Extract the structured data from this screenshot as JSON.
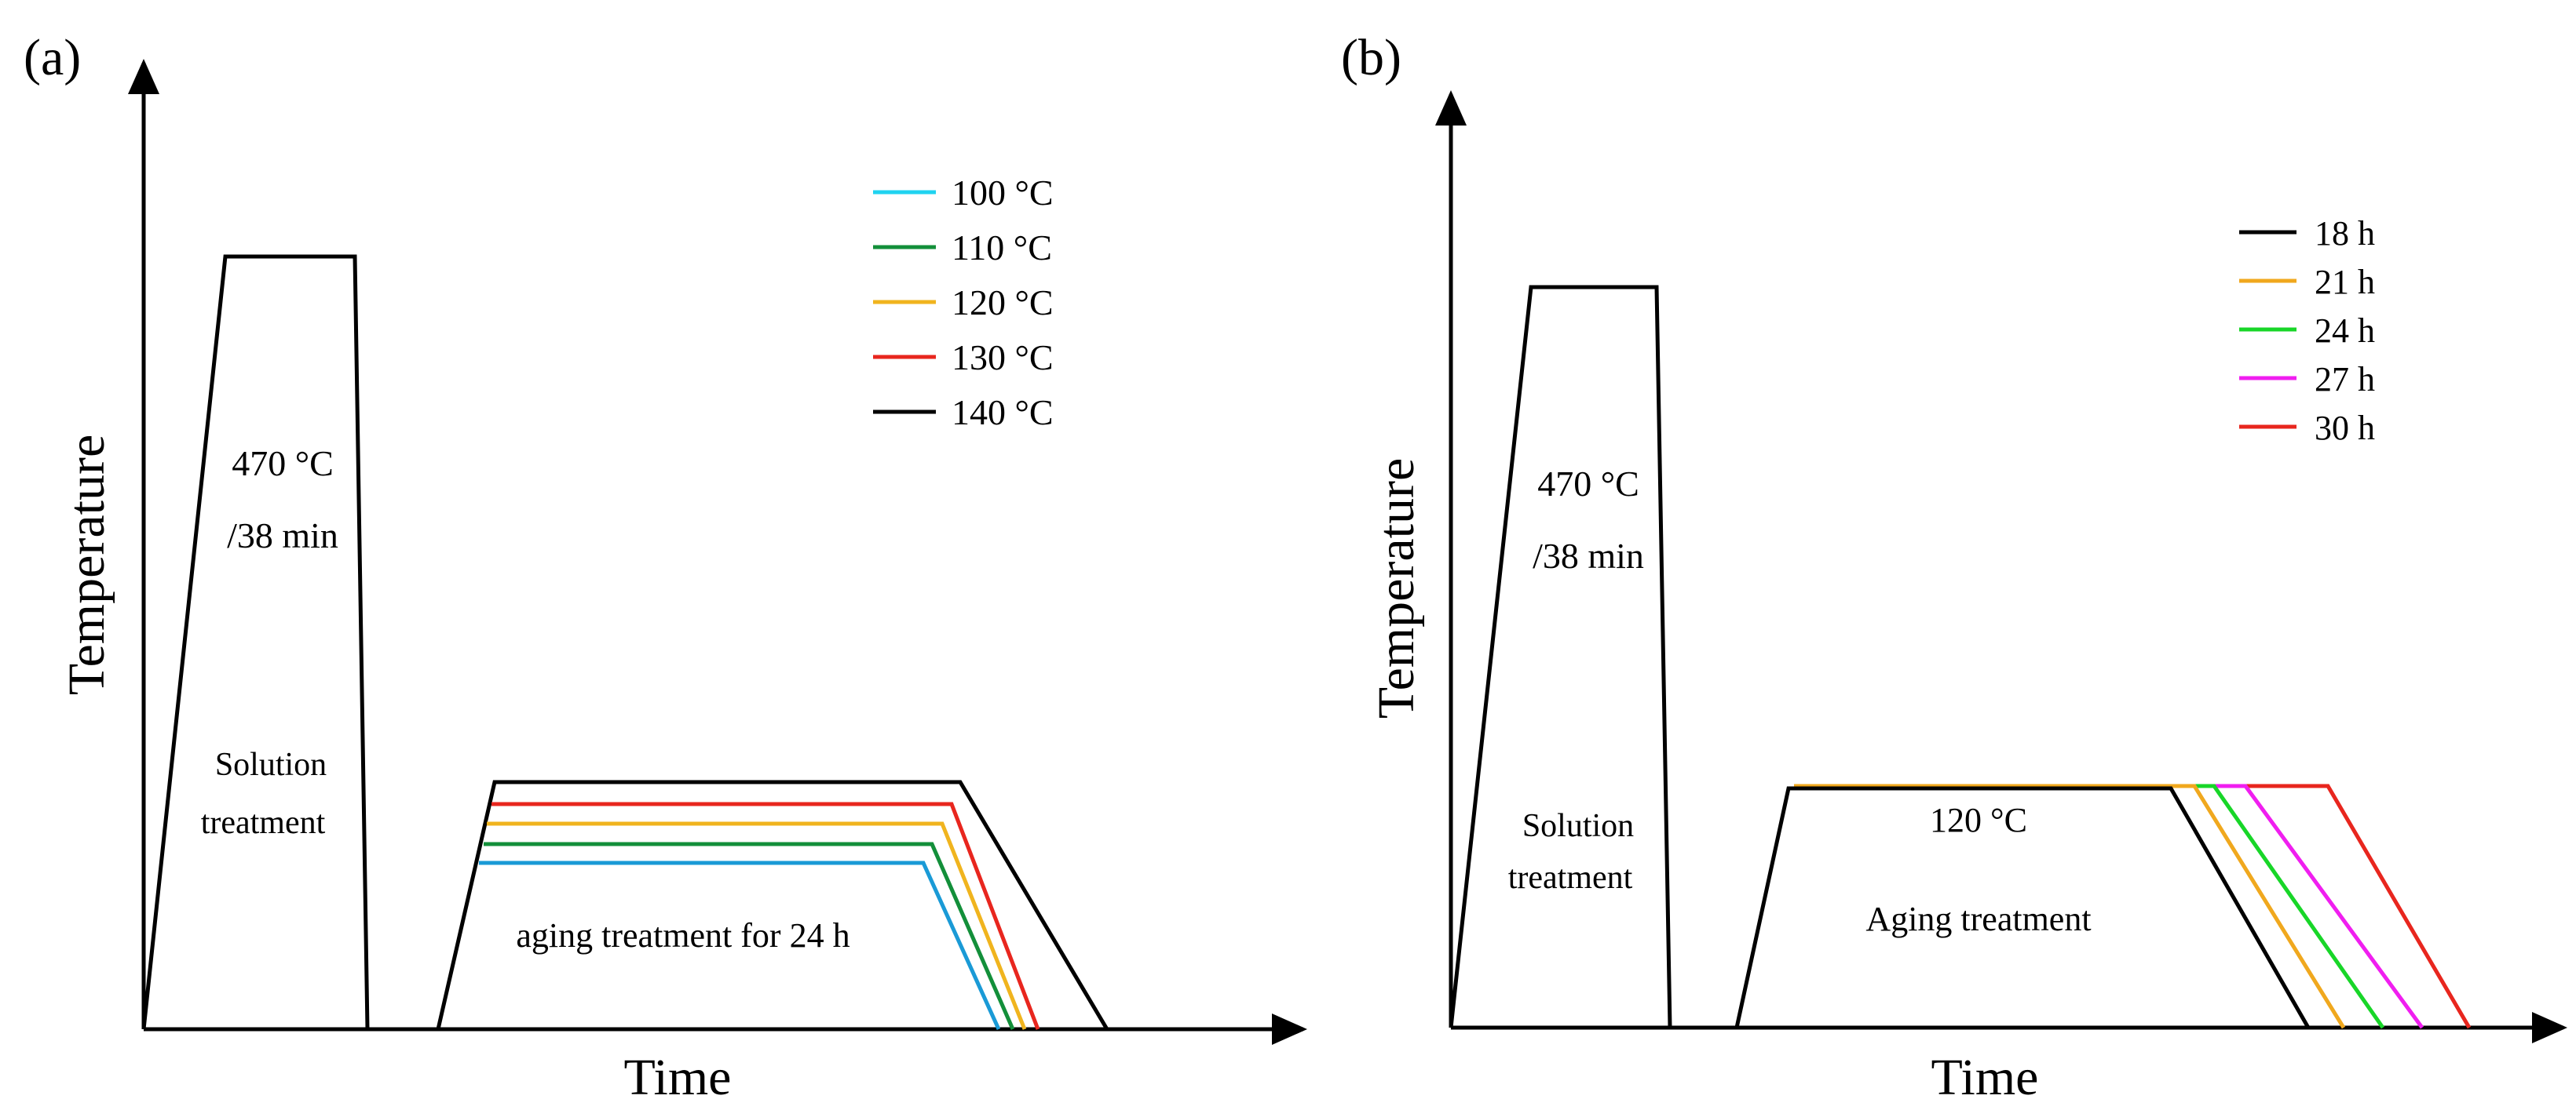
{
  "panel_a": {
    "tag": "(a)",
    "x_axis_label": "Time",
    "y_axis_label": "Temperature",
    "solution": {
      "temp": "470 °C",
      "duration": "/38 min",
      "name_line1": "Solution",
      "name_line2": "treatment"
    },
    "aging_label": "aging treatment for 24 h",
    "legend": [
      {
        "label": "100 °C",
        "color": "#1fd3f0"
      },
      {
        "label": "110 °C",
        "color": "#138f3a"
      },
      {
        "label": "120 °C",
        "color": "#f0b41e"
      },
      {
        "label": "130 °C",
        "color": "#e8261e"
      },
      {
        "label": "140 °C",
        "color": "#000000"
      }
    ],
    "aging_curve_colors": [
      "#1a9ad6",
      "#138f3a",
      "#f0b41e",
      "#e8261e",
      "#000000"
    ]
  },
  "panel_b": {
    "tag": "(b)",
    "x_axis_label": "Time",
    "y_axis_label": "Temperature",
    "solution": {
      "temp": "470 °C",
      "duration": "/38 min",
      "name_line1": "Solution",
      "name_line2": "treatment"
    },
    "aging_temp": "120 °C",
    "aging_label": "Aging treatment",
    "legend": [
      {
        "label": "18 h",
        "color": "#000000"
      },
      {
        "label": "21 h",
        "color": "#f0a81e"
      },
      {
        "label": "24 h",
        "color": "#18d628"
      },
      {
        "label": "27 h",
        "color": "#f01ef0"
      },
      {
        "label": "30 h",
        "color": "#e8261e"
      }
    ]
  }
}
